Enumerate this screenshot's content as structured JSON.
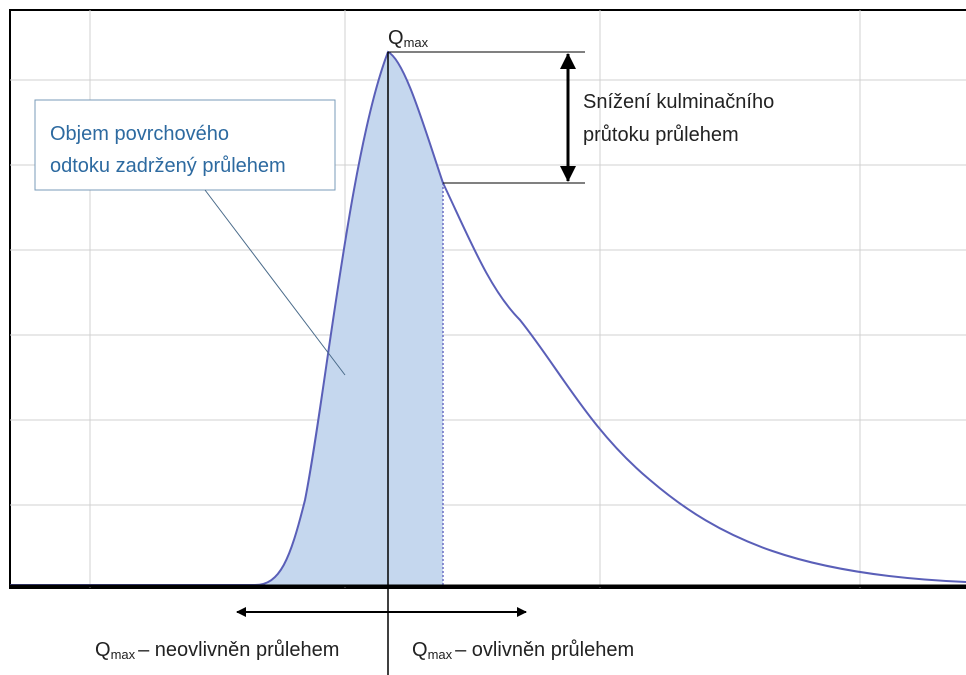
{
  "peak_label": {
    "main": "Q",
    "sub": "max"
  },
  "reduction_label": [
    "Snížení kulminačního",
    "průtoku průlehem"
  ],
  "callout": [
    "Objem povrchového",
    "odtoku zadržený průlehem"
  ],
  "left_label": {
    "main": "Q",
    "sub": "max",
    "rest": "– neovlivněn průlehem"
  },
  "right_label": {
    "main": "Q",
    "sub": "max",
    "rest": "– ovlivněn průlehem"
  }
}
